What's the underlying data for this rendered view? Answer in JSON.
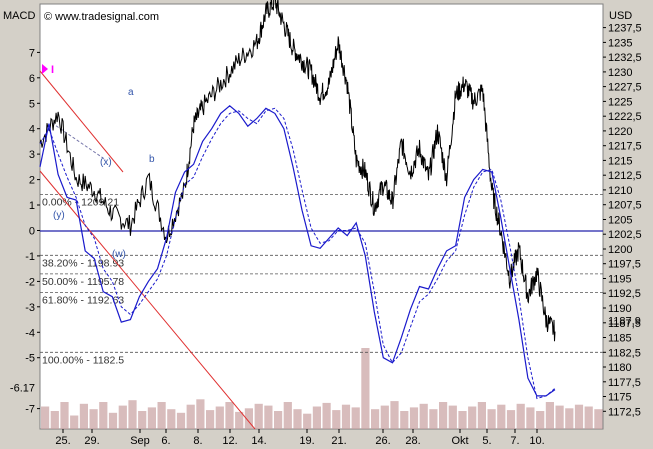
{
  "header": {
    "left_label": "MACD",
    "right_label": "USD",
    "watermark": "© www.tradesignal.com"
  },
  "marker": {
    "label": "I",
    "color": "#ff00ff"
  },
  "chart_data": {
    "type": "line",
    "macd_axis": {
      "range": [
        -7.8,
        8.9
      ],
      "ticks": [
        "7",
        "6",
        "5",
        "4",
        "3",
        "2",
        "1",
        "0",
        "-1",
        "-2",
        "-3",
        "-4",
        "-5",
        "-7"
      ],
      "current_value": "-6.17"
    },
    "price_axis": {
      "range": [
        1169.5,
        1241.5
      ],
      "ticks": [
        "1237,5",
        "1235",
        "1232,5",
        "1230",
        "1227,5",
        "1225",
        "1222,5",
        "1220",
        "1217,5",
        "1215",
        "1212,5",
        "1210",
        "1207,5",
        "1205",
        "1202,5",
        "1200",
        "1197,5",
        "1195",
        "1192,5",
        "1190",
        "1187,5",
        "1185",
        "1182,5",
        "1180",
        "1177,5",
        "1175",
        "1172,5"
      ],
      "last_price": "1187,9"
    },
    "x_axis": {
      "ticks": [
        "25.",
        "29.",
        "Sep",
        "6.",
        "8.",
        "12.",
        "14.",
        "19.",
        "21.",
        "26.",
        "28.",
        "Okt",
        "5.",
        "7.",
        "10."
      ]
    },
    "fibonacci_levels": [
      {
        "label": "0.00% - 1209.21",
        "price": 1209.21
      },
      {
        "label": "38.20% - 1198.93",
        "price": 1198.93
      },
      {
        "label": "50.00% - 1195.78",
        "price": 1195.78
      },
      {
        "label": "61.80% - 1192.63",
        "price": 1192.63
      },
      {
        "label": "100.00% - 1182.5",
        "price": 1182.5
      }
    ],
    "wave_labels": [
      "a",
      "b",
      "(x)",
      "(y)",
      "(w)"
    ],
    "price_series": {
      "name": "",
      "color": "#000000",
      "anchors": [
        [
          0,
          1218
        ],
        [
          2,
          1223
        ],
        [
          4,
          1212
        ],
        [
          6,
          1210
        ],
        [
          8,
          1206
        ],
        [
          10,
          1204
        ],
        [
          12,
          1212
        ],
        [
          14,
          1202
        ],
        [
          16,
          1210
        ],
        [
          17,
          1221
        ],
        [
          18,
          1224
        ],
        [
          20,
          1228
        ],
        [
          22,
          1232
        ],
        [
          24,
          1235
        ],
        [
          25,
          1240
        ],
        [
          26,
          1242
        ],
        [
          27,
          1238
        ],
        [
          28,
          1234
        ],
        [
          29,
          1232
        ],
        [
          30,
          1230
        ],
        [
          31,
          1226
        ],
        [
          32,
          1228
        ],
        [
          33,
          1235
        ],
        [
          34,
          1228
        ],
        [
          35,
          1215
        ],
        [
          36,
          1213
        ],
        [
          37,
          1207
        ],
        [
          38,
          1211
        ],
        [
          39,
          1208
        ],
        [
          40,
          1218
        ],
        [
          41,
          1213
        ],
        [
          42,
          1217
        ],
        [
          43,
          1212
        ],
        [
          44,
          1220
        ],
        [
          45,
          1212
        ],
        [
          46,
          1226
        ],
        [
          47,
          1228
        ],
        [
          48,
          1225
        ],
        [
          49,
          1227
        ],
        [
          50,
          1210
        ],
        [
          51,
          1203
        ],
        [
          52,
          1195
        ],
        [
          53,
          1200
        ],
        [
          54,
          1192
        ],
        [
          55,
          1196
        ],
        [
          56,
          1188
        ],
        [
          57,
          1186
        ]
      ]
    },
    "macd_series": {
      "name": "",
      "color": "#1a1acc",
      "points": [
        [
          0,
          2.5
        ],
        [
          1,
          4.2
        ],
        [
          2,
          2.2
        ],
        [
          3,
          1.3
        ],
        [
          4,
          1.2
        ],
        [
          5,
          -0.8
        ],
        [
          6,
          -1.1
        ],
        [
          7,
          -2.4
        ],
        [
          8,
          -2.6
        ],
        [
          9,
          -3.6
        ],
        [
          10,
          -3.5
        ],
        [
          11,
          -2.6
        ],
        [
          12,
          -2.0
        ],
        [
          13,
          -1.5
        ],
        [
          14,
          -0.3
        ],
        [
          15,
          1.5
        ],
        [
          16,
          2.3
        ],
        [
          17,
          2.6
        ],
        [
          18,
          3.5
        ],
        [
          19,
          4.0
        ],
        [
          20,
          4.6
        ],
        [
          21,
          4.9
        ],
        [
          22,
          4.6
        ],
        [
          23,
          4.1
        ],
        [
          24,
          4.4
        ],
        [
          25,
          4.8
        ],
        [
          26,
          4.6
        ],
        [
          27,
          4.0
        ],
        [
          28,
          2.5
        ],
        [
          29,
          0.8
        ],
        [
          30,
          -0.6
        ],
        [
          31,
          -0.7
        ],
        [
          32,
          -0.3
        ],
        [
          33,
          0.1
        ],
        [
          34,
          -0.2
        ],
        [
          35,
          0.3
        ],
        [
          36,
          -1.0
        ],
        [
          37,
          -3.2
        ],
        [
          38,
          -5.0
        ],
        [
          39,
          -5.2
        ],
        [
          40,
          -4.2
        ],
        [
          41,
          -3.1
        ],
        [
          42,
          -2.2
        ],
        [
          43,
          -2.3
        ],
        [
          44,
          -1.5
        ],
        [
          45,
          -0.8
        ],
        [
          46,
          -0.6
        ],
        [
          47,
          1.3
        ],
        [
          48,
          2.0
        ],
        [
          49,
          2.4
        ],
        [
          50,
          2.3
        ],
        [
          51,
          0.5
        ],
        [
          52,
          -1.5
        ],
        [
          53,
          -3.5
        ],
        [
          54,
          -5.8
        ],
        [
          55,
          -6.5
        ],
        [
          56,
          -6.5
        ],
        [
          57,
          -6.25
        ]
      ]
    },
    "signal_series": {
      "name": "",
      "color": "#1a1acc",
      "dashed": true,
      "points": [
        [
          0,
          3.4
        ],
        [
          1,
          4.0
        ],
        [
          2,
          3.0
        ],
        [
          3,
          2.1
        ],
        [
          4,
          1.3
        ],
        [
          5,
          0.2
        ],
        [
          6,
          -0.3
        ],
        [
          7,
          -1.5
        ],
        [
          8,
          -2.0
        ],
        [
          9,
          -3.0
        ],
        [
          10,
          -3.3
        ],
        [
          11,
          -2.9
        ],
        [
          12,
          -2.4
        ],
        [
          13,
          -1.9
        ],
        [
          14,
          -1.0
        ],
        [
          15,
          0.5
        ],
        [
          16,
          1.8
        ],
        [
          17,
          2.1
        ],
        [
          18,
          2.9
        ],
        [
          19,
          3.6
        ],
        [
          20,
          4.2
        ],
        [
          21,
          4.6
        ],
        [
          22,
          4.7
        ],
        [
          23,
          4.4
        ],
        [
          24,
          4.2
        ],
        [
          25,
          4.7
        ],
        [
          26,
          4.8
        ],
        [
          27,
          4.4
        ],
        [
          28,
          3.2
        ],
        [
          29,
          1.6
        ],
        [
          30,
          0.1
        ],
        [
          31,
          -0.5
        ],
        [
          32,
          -0.4
        ],
        [
          33,
          0.0
        ],
        [
          34,
          0.0
        ],
        [
          35,
          0.1
        ],
        [
          36,
          -0.5
        ],
        [
          37,
          -2.4
        ],
        [
          38,
          -4.5
        ],
        [
          39,
          -5.2
        ],
        [
          40,
          -4.8
        ],
        [
          41,
          -3.8
        ],
        [
          42,
          -2.8
        ],
        [
          43,
          -2.5
        ],
        [
          44,
          -1.9
        ],
        [
          45,
          -1.2
        ],
        [
          46,
          -0.8
        ],
        [
          47,
          0.6
        ],
        [
          48,
          1.7
        ],
        [
          49,
          2.3
        ],
        [
          50,
          2.4
        ],
        [
          51,
          1.2
        ],
        [
          52,
          -0.6
        ],
        [
          53,
          -2.6
        ],
        [
          54,
          -5.0
        ],
        [
          55,
          -6.6
        ],
        [
          56,
          -6.5
        ],
        [
          57,
          -6.2
        ]
      ]
    },
    "volume_series": {
      "name": "",
      "color": "#c8a0a0",
      "values": [
        0.25,
        0.2,
        0.3,
        0.15,
        0.28,
        0.22,
        0.3,
        0.18,
        0.26,
        0.32,
        0.2,
        0.24,
        0.3,
        0.22,
        0.18,
        0.27,
        0.33,
        0.21,
        0.25,
        0.3,
        0.19,
        0.23,
        0.28,
        0.26,
        0.2,
        0.3,
        0.22,
        0.17,
        0.25,
        0.29,
        0.21,
        0.27,
        0.24,
        0.9,
        0.22,
        0.26,
        0.31,
        0.2,
        0.24,
        0.28,
        0.22,
        0.3,
        0.26,
        0.2,
        0.25,
        0.3,
        0.22,
        0.27,
        0.21,
        0.28,
        0.24,
        0.2,
        0.3,
        0.26,
        0.23,
        0.27,
        0.25,
        0.22
      ]
    }
  }
}
